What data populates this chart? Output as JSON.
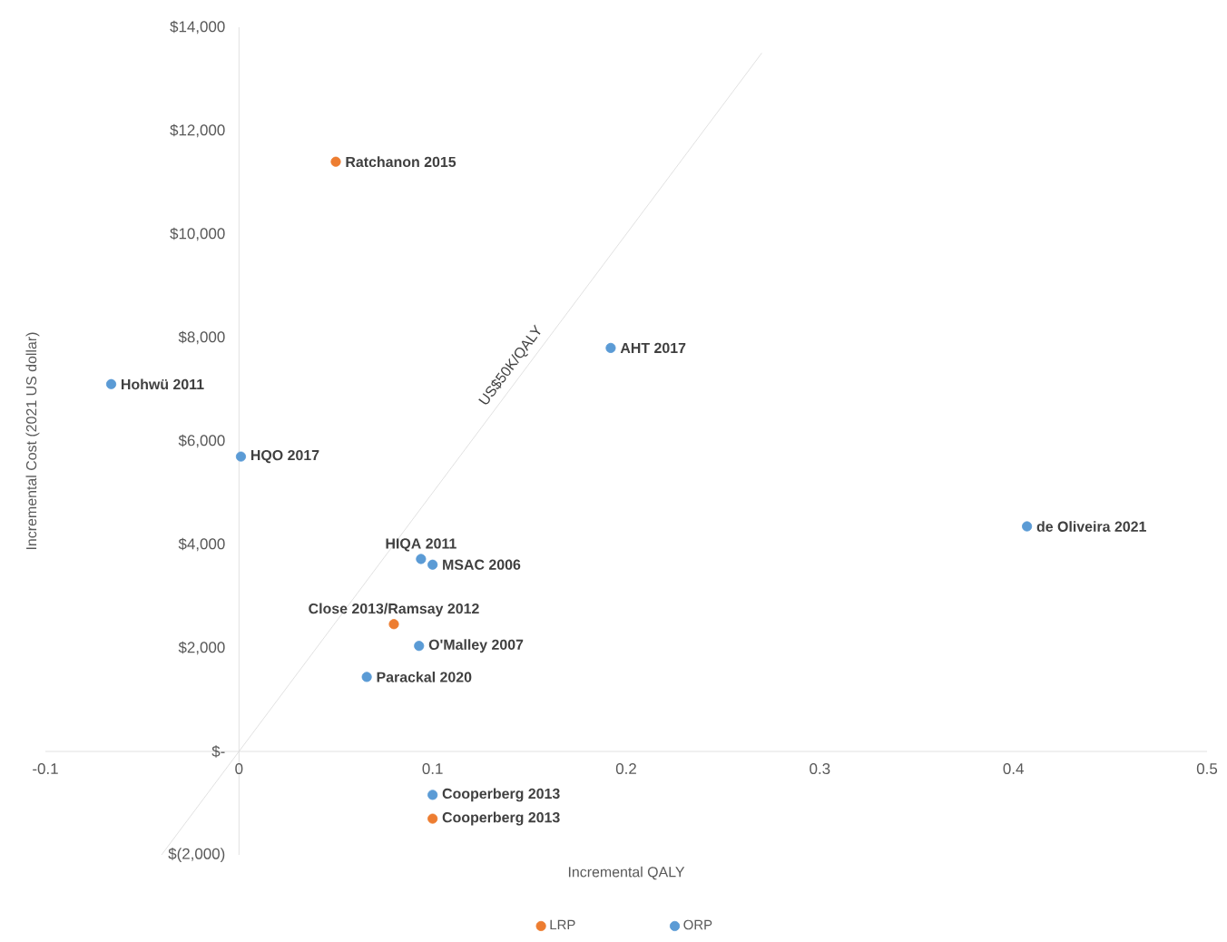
{
  "chart_data": {
    "type": "scatter",
    "xlabel": "Incremental QALY",
    "ylabel": "Incremental Cost (2021 US dollar)",
    "series": [
      {
        "name": "LRP",
        "marker": "circle",
        "color": "#ed7d31",
        "x": [
          0.05,
          0.08,
          0.1
        ],
        "values": [
          11400,
          2460,
          -1300
        ]
      },
      {
        "name": "ORP",
        "marker": "circle",
        "color": "#5b9bd5",
        "x": [
          0.192,
          -0.066,
          0.001,
          0.407,
          0.094,
          0.1,
          0.093,
          0.066,
          0.1
        ],
        "values": [
          7800,
          7100,
          5700,
          4350,
          3720,
          3610,
          2040,
          1440,
          -840
        ]
      },
      {
        "name": "US$50K/QALY",
        "type": "line",
        "marker": "none",
        "color": "#d9d9d9",
        "x": [
          -0.04,
          0.27
        ],
        "values": [
          -2000,
          13500
        ]
      }
    ],
    "annotations": [
      {
        "text": "Ratchanon 2015",
        "x": 0.05,
        "y": 11400
      },
      {
        "text": "AHT 2017",
        "x": 0.192,
        "y": 7800
      },
      {
        "text": "Hohwü 2011",
        "x": -0.066,
        "y": 7100
      },
      {
        "text": "HQO 2017",
        "x": 0.001,
        "y": 5700
      },
      {
        "text": "de Oliveira 2021",
        "x": 0.407,
        "y": 4350
      },
      {
        "text": "HIQA 2011",
        "x": 0.094,
        "y": 3720
      },
      {
        "text": "MSAC 2006",
        "x": 0.1,
        "y": 3610
      },
      {
        "text": "Close 2013/Ramsay 2012",
        "x": 0.08,
        "y": 2460
      },
      {
        "text": "O'Malley 2007",
        "x": 0.093,
        "y": 2040
      },
      {
        "text": "Parackal 2020",
        "x": 0.066,
        "y": 1440
      },
      {
        "text": "Cooperberg 2013",
        "x": 0.1,
        "y": -840
      },
      {
        "text": "Cooperberg 2013",
        "x": 0.1,
        "y": -1300
      }
    ],
    "xlim": [
      -0.1,
      0.5
    ],
    "ylim": [
      -2000,
      14000
    ],
    "xticks": [
      -0.1,
      0,
      0.1,
      0.2,
      0.3,
      0.4,
      0.5
    ],
    "yticks": [
      {
        "value": -2000,
        "label": "$(2,000)"
      },
      {
        "value": 0,
        "label": "$-"
      },
      {
        "value": 2000,
        "label": "$2,000"
      },
      {
        "value": 4000,
        "label": "$4,000"
      },
      {
        "value": 6000,
        "label": "$6,000"
      },
      {
        "value": 8000,
        "label": "$8,000"
      },
      {
        "value": 10000,
        "label": "$10,000"
      },
      {
        "value": 12000,
        "label": "$12,000"
      },
      {
        "value": 14000,
        "label": "$14,000"
      }
    ],
    "grid": false,
    "legend": "bottom"
  }
}
